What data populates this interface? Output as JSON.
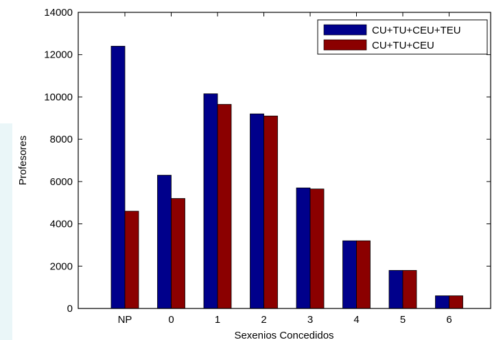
{
  "chart_data": {
    "type": "bar",
    "title": "",
    "xlabel": "Sexenios Concedidos",
    "ylabel": "Profesores",
    "categories": [
      "NP",
      "0",
      "1",
      "2",
      "3",
      "4",
      "5",
      "6"
    ],
    "series": [
      {
        "name": "CU+TU+CEU+TEU",
        "color": "#00008b",
        "values": [
          12400,
          6300,
          10150,
          9200,
          5700,
          3200,
          1800,
          600
        ]
      },
      {
        "name": "CU+TU+CEU",
        "color": "#8b0000",
        "values": [
          4600,
          5200,
          9650,
          9100,
          5650,
          3200,
          1800,
          600
        ]
      }
    ],
    "ylim": [
      0,
      14000
    ],
    "yticks": [
      0,
      2000,
      4000,
      6000,
      8000,
      10000,
      12000,
      14000
    ],
    "grid": false,
    "legend_position": "top-right"
  }
}
